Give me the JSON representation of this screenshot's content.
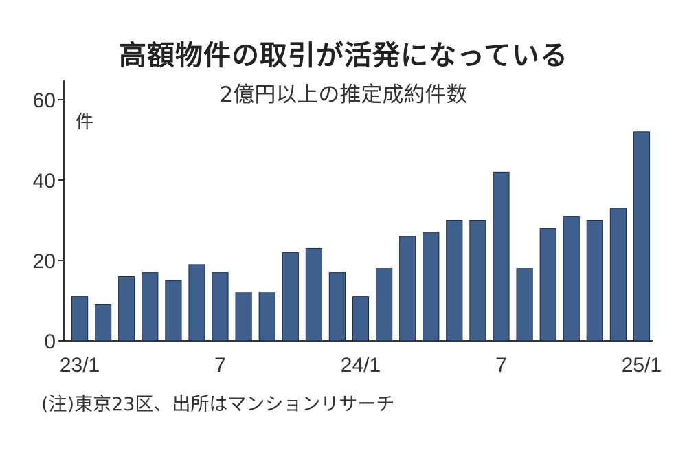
{
  "chart_data": {
    "type": "bar",
    "title": "高額物件の取引が活発になっている",
    "subtitle": "2億円以上の推定成約件数",
    "ylabel": "件",
    "xlabel": "",
    "ylim": [
      0,
      60
    ],
    "yticks": [
      0,
      20,
      40,
      60
    ],
    "categories": [
      "2023/1",
      "2023/2",
      "2023/3",
      "2023/4",
      "2023/5",
      "2023/6",
      "2023/7",
      "2023/8",
      "2023/9",
      "2023/10",
      "2023/11",
      "2023/12",
      "2024/1",
      "2024/2",
      "2024/3",
      "2024/4",
      "2024/5",
      "2024/6",
      "2024/7",
      "2024/8",
      "2024/9",
      "2024/10",
      "2024/11",
      "2024/12",
      "2025/1"
    ],
    "xtick_labels": [
      {
        "index": 0,
        "label": "23/1"
      },
      {
        "index": 6,
        "label": "7"
      },
      {
        "index": 12,
        "label": "24/1"
      },
      {
        "index": 18,
        "label": "7"
      },
      {
        "index": 24,
        "label": "25/1"
      }
    ],
    "values": [
      11,
      9,
      16,
      17,
      15,
      19,
      17,
      12,
      12,
      22,
      23,
      17,
      11,
      18,
      26,
      27,
      30,
      30,
      42,
      18,
      28,
      31,
      30,
      33,
      52
    ],
    "bar_color": "#3f5f8c",
    "grid": false,
    "legend": "none"
  },
  "footnote": "(注)東京23区、出所はマンションリサーチ"
}
